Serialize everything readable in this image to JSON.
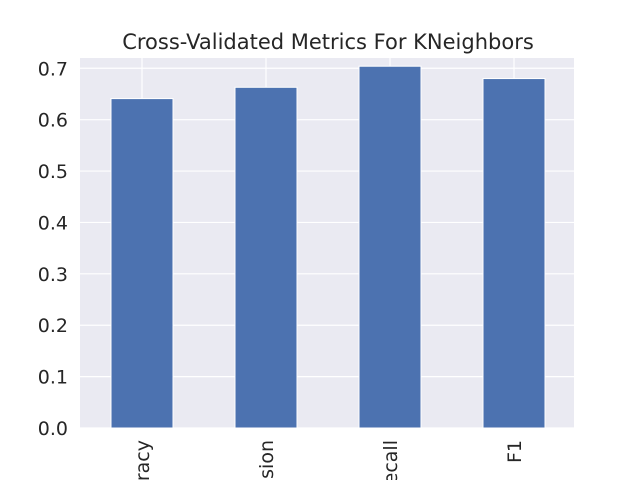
{
  "chart_data": {
    "type": "bar",
    "title": "Cross-Validated Metrics For KNeighbors",
    "categories": [
      "Accuracy",
      "Precision",
      "Recall",
      "F1"
    ],
    "visible_tick_labels": [
      "racy",
      "sion",
      "ecall",
      "F1"
    ],
    "values": [
      0.641,
      0.663,
      0.704,
      0.68
    ],
    "xlabel": "",
    "ylabel": "",
    "ylim": [
      0,
      0.72
    ],
    "yticks": [
      "0.0",
      "0.1",
      "0.2",
      "0.3",
      "0.4",
      "0.5",
      "0.6",
      "0.7"
    ],
    "grid": true,
    "legend": "none"
  },
  "colors": {
    "bar": "#4c72b0",
    "plot_background": "#eaeaf2",
    "grid": "#ffffff",
    "text": "#262626"
  }
}
